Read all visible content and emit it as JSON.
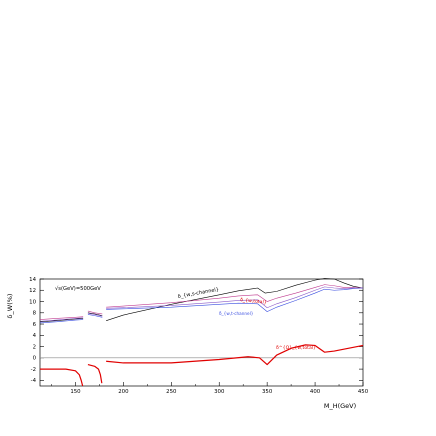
{
  "chart_data": {
    "type": "line",
    "title": "",
    "xlabel": "M_H(GeV)",
    "ylabel": "δ_W(%)",
    "xlim": [
      113,
      450
    ],
    "ylim": [
      -5,
      14
    ],
    "grid": false,
    "legend": "none",
    "x_ticks": [
      150,
      200,
      250,
      300,
      350,
      400,
      450
    ],
    "y_ticks": [
      -4,
      -2,
      0,
      2,
      4,
      6,
      8,
      10,
      12,
      14
    ],
    "annotations": {
      "energy": "√s(GeV)=500GeV",
      "s_channel": "δ_{w,s-channel}",
      "w_total": "δ_{w,total}",
      "t_channel": "δ_{w,t-channel}",
      "qcd_total": "δ^{Q}_{w,total}"
    },
    "colors": {
      "black": "#000000",
      "magenta": "#c03c90",
      "blue": "#3a4ee0",
      "purple": "#8a5ac8",
      "red": "#e00000",
      "zero_line": "#888888"
    },
    "series": [
      {
        "color": "black",
        "segments": [
          {
            "x": [
              113,
              130,
              150,
              158
            ],
            "y": [
              6.4,
              6.6,
              6.9,
              7.0
            ]
          },
          {
            "x": [
              163,
              170,
              178
            ],
            "y": [
              8.0,
              7.8,
              7.5
            ]
          },
          {
            "x": [
              182,
              200,
              250,
              300,
              320,
              340,
              348,
              360,
              380,
              400,
              410,
              420,
              430,
              440,
              450
            ],
            "y": [
              6.6,
              7.6,
              9.5,
              11.2,
              11.9,
              12.4,
              11.5,
              11.8,
              12.9,
              13.8,
              14.1,
              14.0,
              13.3,
              12.7,
              12.4
            ]
          }
        ]
      },
      {
        "color": "magenta",
        "segments": [
          {
            "x": [
              113,
              130,
              150,
              158
            ],
            "y": [
              6.8,
              7.0,
              7.2,
              7.3
            ]
          },
          {
            "x": [
              163,
              170,
              178
            ],
            "y": [
              8.3,
              8.0,
              7.8
            ]
          },
          {
            "x": [
              182,
              200,
              250,
              300,
              320,
              340,
              350,
              360,
              380,
              400,
              410,
              420,
              430,
              440,
              450
            ],
            "y": [
              9.0,
              9.2,
              9.8,
              10.6,
              11.0,
              11.2,
              10.0,
              10.6,
              11.5,
              12.5,
              13.0,
              12.8,
              12.5,
              12.5,
              12.4
            ]
          }
        ]
      },
      {
        "color": "blue",
        "segments": [
          {
            "x": [
              113,
              130,
              150,
              158
            ],
            "y": [
              6.2,
              6.4,
              6.7,
              6.8
            ]
          },
          {
            "x": [
              163,
              170,
              178
            ],
            "y": [
              7.7,
              7.5,
              7.2
            ]
          },
          {
            "x": [
              182,
              200,
              250,
              300,
              320,
              340,
              350,
              360,
              380,
              400,
              410,
              420,
              430,
              440,
              450
            ],
            "y": [
              8.6,
              8.7,
              9.0,
              9.5,
              9.7,
              9.6,
              8.2,
              9.0,
              10.2,
              11.5,
              12.2,
              12.0,
              12.1,
              12.3,
              12.4
            ]
          }
        ]
      },
      {
        "color": "purple",
        "segments": [
          {
            "x": [
              113,
              130,
              150,
              158
            ],
            "y": [
              6.5,
              6.7,
              7.0,
              7.1
            ]
          },
          {
            "x": [
              163,
              170,
              178
            ],
            "y": [
              7.9,
              7.7,
              7.4
            ]
          },
          {
            "x": [
              182,
              200,
              250,
              300,
              320,
              340,
              350,
              360,
              380,
              400,
              410,
              420,
              430,
              440,
              450
            ],
            "y": [
              8.8,
              8.9,
              9.3,
              9.9,
              10.2,
              10.3,
              8.9,
              9.6,
              10.7,
              12.0,
              12.6,
              12.4,
              12.3,
              12.4,
              12.4
            ]
          }
        ]
      },
      {
        "color": "red",
        "width": 1.2,
        "segments": [
          {
            "x": [
              113,
              140,
              150,
              154,
              156,
              157.5
            ],
            "y": [
              -2.0,
              -2.0,
              -2.3,
              -3.0,
              -4.0,
              -5.0
            ]
          },
          {
            "x": [
              163,
              170,
              174,
              176,
              177.5
            ],
            "y": [
              -1.2,
              -1.5,
              -2.0,
              -3.0,
              -4.5
            ]
          },
          {
            "x": [
              182,
              200,
              250,
              300,
              330,
              342,
              350,
              360,
              375,
              390,
              400,
              410,
              420,
              450
            ],
            "y": [
              -0.6,
              -0.9,
              -0.9,
              -0.3,
              0.2,
              0.0,
              -1.2,
              0.5,
              1.7,
              2.3,
              2.2,
              1.0,
              1.2,
              2.2
            ]
          }
        ]
      }
    ]
  }
}
